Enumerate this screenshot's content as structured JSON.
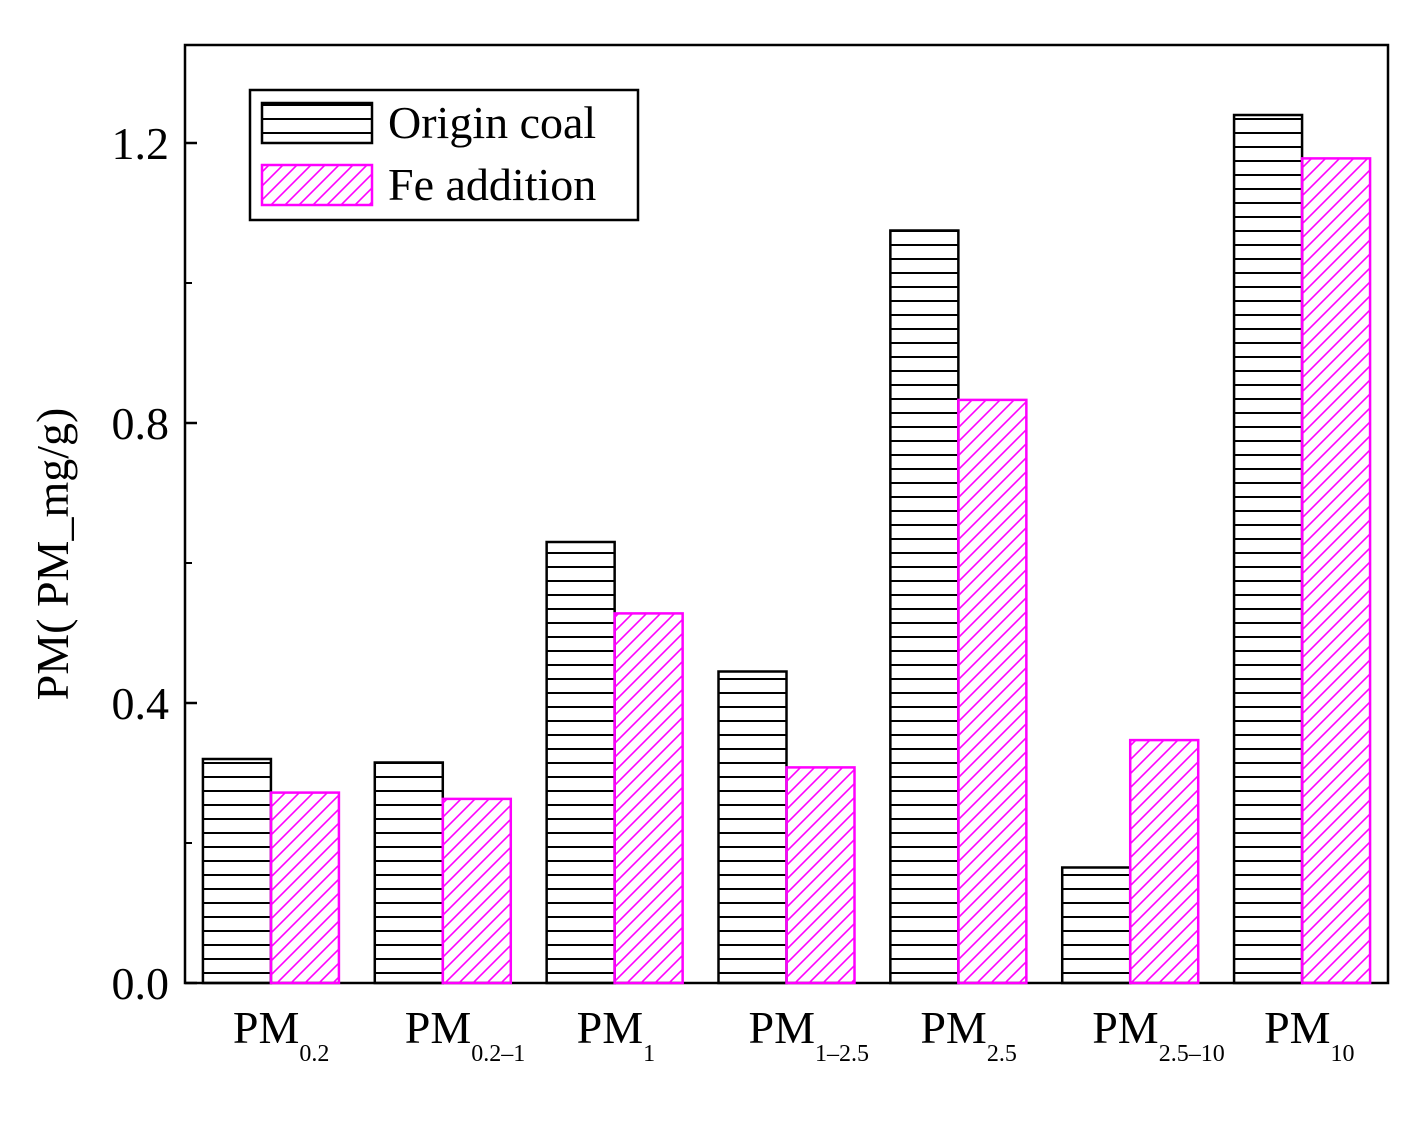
{
  "chart_data": {
    "type": "bar",
    "title": "",
    "xlabel": "",
    "ylabel": "PM(  PM_mg/g)",
    "ylim": [
      0,
      1.34
    ],
    "yticks": [
      0.0,
      0.4,
      0.8,
      1.2
    ],
    "ytick_labels": [
      "0.0",
      "0.4",
      "0.8",
      "1.2"
    ],
    "categories": [
      {
        "main": "PM",
        "sub": "0.2"
      },
      {
        "main": "PM",
        "sub": "0.2–1"
      },
      {
        "main": "PM",
        "sub": "1"
      },
      {
        "main": "PM",
        "sub": "1–2.5"
      },
      {
        "main": "PM",
        "sub": "2.5"
      },
      {
        "main": "PM",
        "sub": "2.5–10"
      },
      {
        "main": "PM",
        "sub": "10"
      }
    ],
    "series": [
      {
        "name": "Origin coal",
        "values": [
          0.32,
          0.315,
          0.63,
          0.445,
          1.075,
          0.165,
          1.24
        ],
        "color": "#000000",
        "pattern": "horizontal"
      },
      {
        "name": "Fe addition",
        "values": [
          0.272,
          0.263,
          0.528,
          0.308,
          0.833,
          0.347,
          1.178
        ],
        "color": "#ff00ff",
        "pattern": "diagonal"
      }
    ],
    "legend": "top-left",
    "grid": false
  }
}
